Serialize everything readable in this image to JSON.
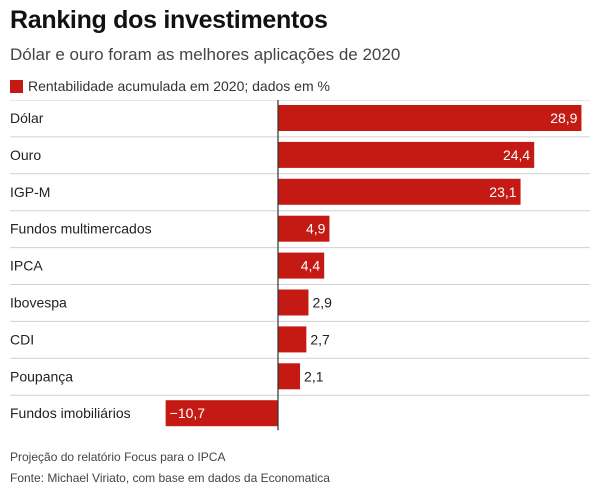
{
  "title": "Ranking dos investimentos",
  "subtitle": "Dólar e ouro foram as melhores aplicações de 2020",
  "legend": {
    "label": "Rentabilidade acumulada em 2020; dados em %"
  },
  "colors": {
    "bar": "#c41a13",
    "axis": "#333333",
    "rule": "#d0d0d0"
  },
  "chart_data": {
    "type": "bar",
    "orientation": "horizontal",
    "categories": [
      "Dólar",
      "Ouro",
      "IGP-M",
      "Fundos multimercados",
      "IPCA",
      "Ibovespa",
      "CDI",
      "Poupança",
      "Fundos imobiliários"
    ],
    "values": [
      28.9,
      24.4,
      23.1,
      4.9,
      4.4,
      2.9,
      2.7,
      2.1,
      -10.7
    ],
    "value_labels": [
      "28,9",
      "24,4",
      "23,1",
      "4,9",
      "4,4",
      "2,9",
      "2,7",
      "2,1",
      "−10,7"
    ],
    "series": [
      {
        "name": "Rentabilidade acumulada em 2020; dados em %",
        "values": [
          28.9,
          24.4,
          23.1,
          4.9,
          4.4,
          2.9,
          2.7,
          2.1,
          -10.7
        ]
      }
    ],
    "xlim": [
      -10.7,
      28.9
    ],
    "grid": false,
    "legend_position": "top-left"
  },
  "footnote": "Projeção do relatório Focus para o IPCA",
  "source": "Fonte: Michael Viriato, com base em dados da Economatica"
}
